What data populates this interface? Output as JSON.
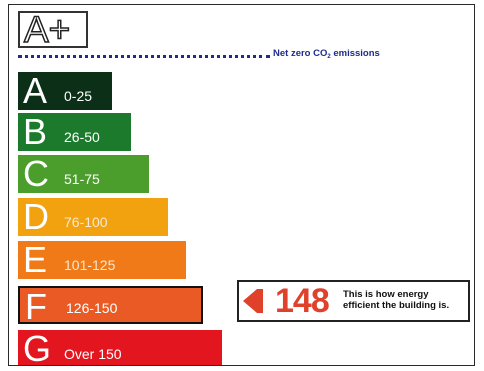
{
  "top_rating": "A+",
  "net_zero": {
    "label_main": "Net zero CO",
    "label_sub": "2",
    "label_tail": " emissions"
  },
  "bands": [
    {
      "letter": "A",
      "range": "0-25",
      "color": "#0b2f17"
    },
    {
      "letter": "B",
      "range": "26-50",
      "color": "#1b7a2c"
    },
    {
      "letter": "C",
      "range": "51-75",
      "color": "#4b9e2c"
    },
    {
      "letter": "D",
      "range": "76-100",
      "color": "#f2a20e"
    },
    {
      "letter": "E",
      "range": "101-125",
      "color": "#f07a17"
    },
    {
      "letter": "F",
      "range": "126-150",
      "color": "#ea5a24"
    },
    {
      "letter": "G",
      "range": "Over 150",
      "color": "#e3151e"
    }
  ],
  "current": {
    "value": "148",
    "band": "F",
    "caption": "This is how energy efficient the building is.",
    "color": "#e0412b"
  }
}
